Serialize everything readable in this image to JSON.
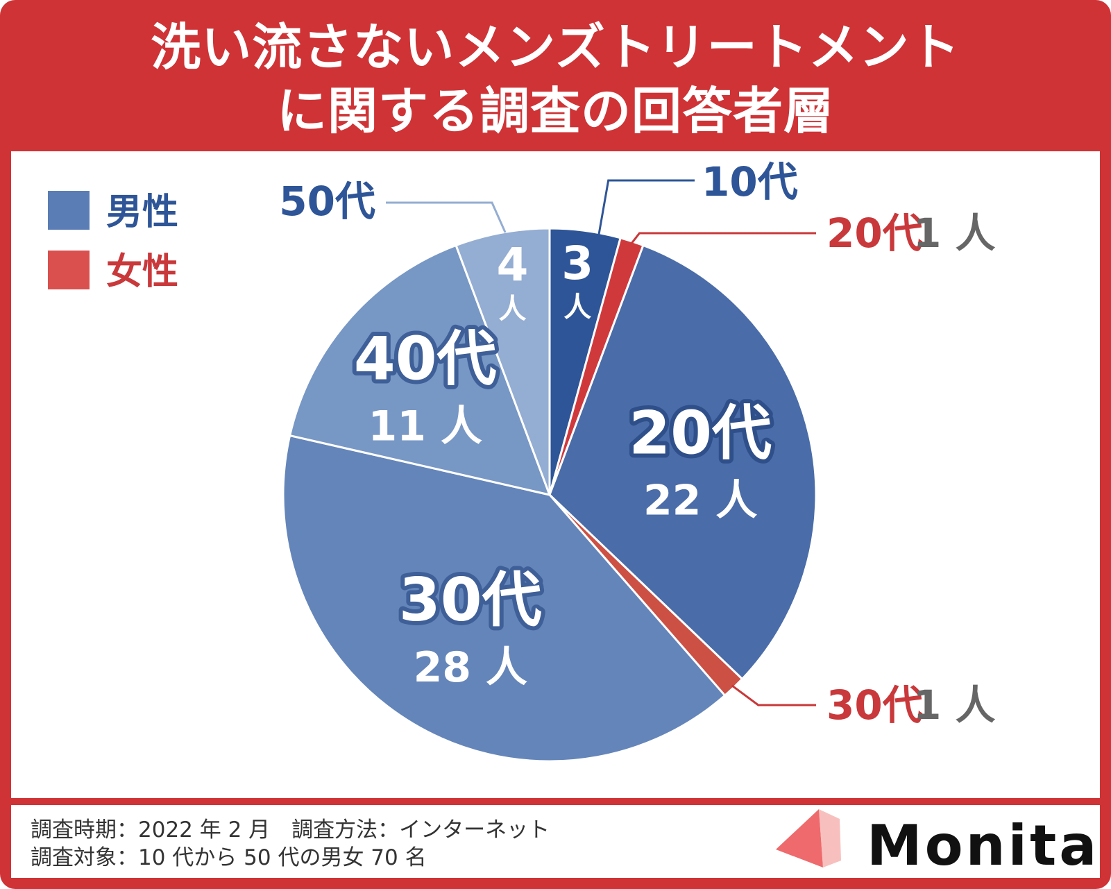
{
  "title": {
    "line1": "洗い流さないメンズトリートメント",
    "line2": "に関する調査の回答者層"
  },
  "colors": {
    "frame": "#cf3336",
    "male": "#5a7db5",
    "female": "#d9504f",
    "male_text": "#2e5597",
    "female_text": "#c9383a",
    "count_gray": "#666666"
  },
  "legend": [
    {
      "label": "男性",
      "color": "#5a7db5"
    },
    {
      "label": "女性",
      "color": "#d9504f"
    }
  ],
  "chart_data": {
    "type": "pie",
    "unit": "人",
    "slices": [
      {
        "category": "10代",
        "gender": "男性",
        "value": 3,
        "count_label": "3",
        "unit_label": "人",
        "color": "#2e5597",
        "label_mode": "inside-vertical",
        "callout_label": "10代"
      },
      {
        "category": "20代",
        "gender": "女性",
        "value": 1,
        "count_label": "1",
        "unit_label": "人",
        "color": "#d0393c",
        "label_mode": "callout",
        "callout_label": "20代"
      },
      {
        "category": "20代",
        "gender": "男性",
        "value": 22,
        "count_label": "22",
        "unit_label": "人",
        "color": "#4a6ca8",
        "label_mode": "inside",
        "inside_label": "20代"
      },
      {
        "category": "30代",
        "gender": "女性",
        "value": 1,
        "count_label": "1",
        "unit_label": "人",
        "color": "#cc5044",
        "label_mode": "callout",
        "callout_label": "30代"
      },
      {
        "category": "30代",
        "gender": "男性",
        "value": 28,
        "count_label": "28",
        "unit_label": "人",
        "color": "#6485b9",
        "label_mode": "inside",
        "inside_label": "30代"
      },
      {
        "category": "40代",
        "gender": "男性",
        "value": 11,
        "count_label": "11",
        "unit_label": "人",
        "color": "#7797c5",
        "label_mode": "inside",
        "inside_label": "40代"
      },
      {
        "category": "50代",
        "gender": "男性",
        "value": 4,
        "count_label": "4",
        "unit_label": "人",
        "color": "#94add2",
        "label_mode": "inside-vertical",
        "callout_label": "50代"
      }
    ]
  },
  "footer": {
    "line1": "調査時期：2022 年 2 月　調査方法：インターネット",
    "line2": "調査対象：10 代から 50 代の男女 70 名",
    "logo": "Monita"
  }
}
